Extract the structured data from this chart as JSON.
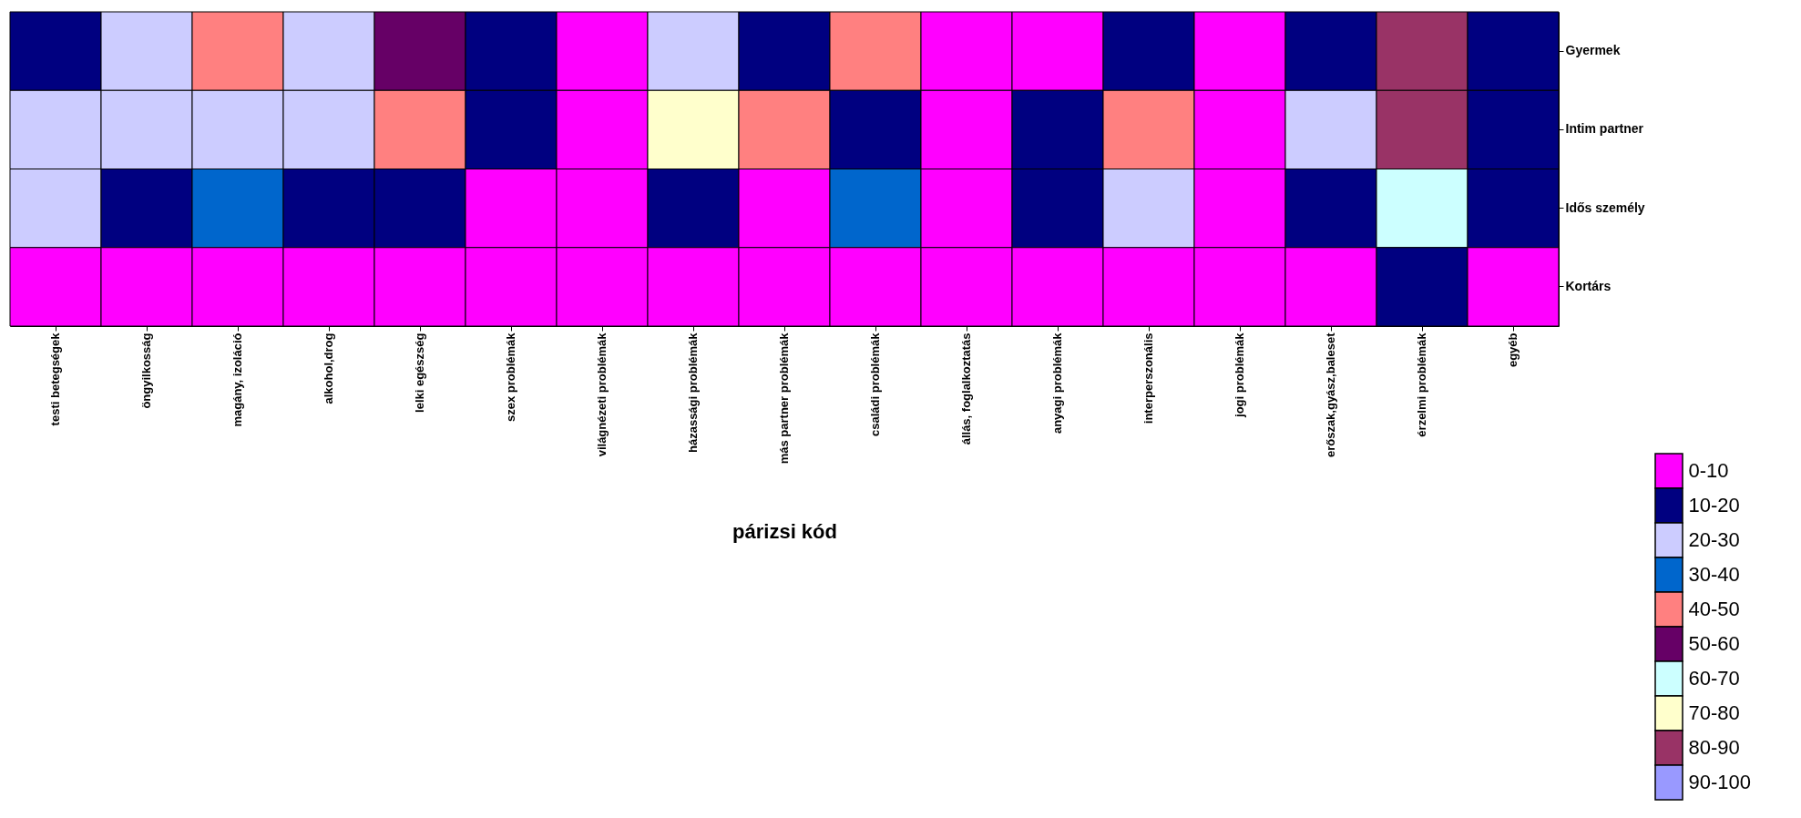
{
  "chart_data": {
    "type": "heatmap",
    "xlabel": "párizsi kód",
    "categories": [
      "testi betegségek",
      "öngyilkosság",
      "magány, izoláció",
      "alkohol,drog",
      "lelki egészség",
      "szex problémák",
      "világnézeti problémák",
      "házassági problémák",
      "más partner problémák",
      "családi problémák",
      "állás, foglalkoztatás",
      "anyagi problémák",
      "interperszonális",
      "jogi problémák",
      "erőszak,gyász,baleset",
      "érzelmi problémák",
      "egyéb"
    ],
    "y_categories": [
      "Gyermek",
      "Intim partner",
      "Idős személy",
      "Kortárs"
    ],
    "cells": [
      [
        15,
        25,
        45,
        25,
        55,
        15,
        5,
        25,
        15,
        45,
        5,
        5,
        15,
        5,
        15,
        85,
        15
      ],
      [
        25,
        25,
        25,
        25,
        45,
        15,
        5,
        75,
        45,
        15,
        5,
        15,
        45,
        5,
        25,
        85,
        15
      ],
      [
        25,
        15,
        35,
        15,
        15,
        5,
        5,
        15,
        5,
        35,
        5,
        15,
        25,
        5,
        15,
        65,
        15
      ],
      [
        5,
        5,
        5,
        5,
        5,
        5,
        5,
        5,
        5,
        5,
        5,
        5,
        5,
        5,
        5,
        10,
        5
      ]
    ],
    "clim": [
      0,
      100
    ],
    "cticks": [
      {
        "value": 5,
        "label": "0-10"
      },
      {
        "value": 15,
        "label": "10-20"
      },
      {
        "value": 25,
        "label": "20-30"
      },
      {
        "value": 35,
        "label": "30-40"
      },
      {
        "value": 45,
        "label": "40-50"
      },
      {
        "value": 55,
        "label": "50-60"
      },
      {
        "value": 65,
        "label": "60-70"
      },
      {
        "value": 75,
        "label": "70-80"
      },
      {
        "value": 85,
        "label": "80-90"
      },
      {
        "value": 95,
        "label": "90-100"
      }
    ],
    "colors": [
      "#ff00ff",
      "#000080",
      "#ccccff",
      "#0066cc",
      "#ff8080",
      "#660066",
      "#ccffff",
      "#ffffcc",
      "#993366",
      "#9999ff"
    ]
  }
}
